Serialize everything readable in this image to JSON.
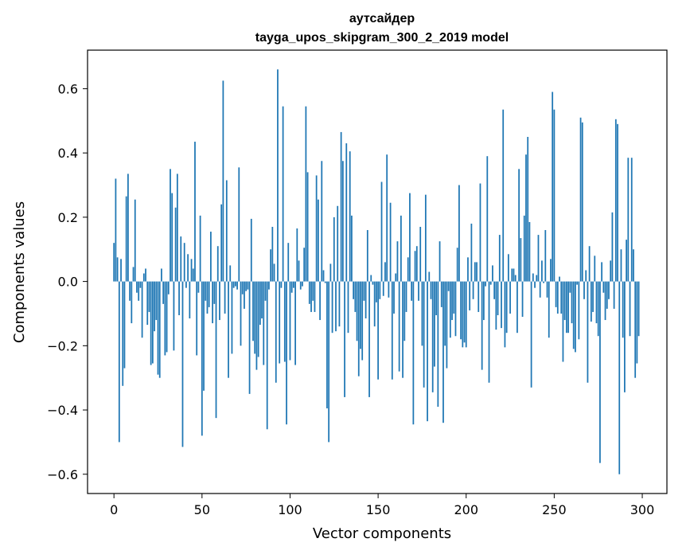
{
  "chart_data": {
    "type": "bar",
    "title": "аутсайдер",
    "subtitle": "tayga_upos_skipgram_300_2_2019 model",
    "xlabel": "Vector components",
    "ylabel": "Components values",
    "xlim": [
      -15,
      314
    ],
    "ylim": [
      -0.66,
      0.72
    ],
    "xticks": [
      0,
      50,
      100,
      150,
      200,
      250,
      300
    ],
    "yticks": [
      -0.6,
      -0.4,
      -0.2,
      0.0,
      0.2,
      0.4,
      0.6
    ],
    "ytick_labels": [
      "−0.6",
      "−0.4",
      "−0.2",
      "0.0",
      "0.2",
      "0.4",
      "0.6"
    ],
    "grid": false,
    "bar_color": "#1f77b4",
    "values": [
      0.12,
      0.32,
      0.075,
      -0.5,
      0.07,
      -0.325,
      -0.27,
      0.265,
      0.335,
      -0.06,
      -0.13,
      0.045,
      0.255,
      -0.035,
      -0.06,
      -0.02,
      -0.175,
      0.025,
      0.04,
      -0.135,
      -0.095,
      -0.26,
      -0.255,
      -0.155,
      -0.12,
      -0.29,
      -0.3,
      0.04,
      -0.07,
      -0.23,
      -0.22,
      -0.04,
      0.35,
      0.275,
      -0.215,
      0.23,
      0.335,
      -0.105,
      0.14,
      -0.515,
      0.12,
      -0.02,
      0.085,
      -0.115,
      0.07,
      0.04,
      0.435,
      -0.23,
      -0.035,
      0.205,
      -0.48,
      -0.34,
      -0.06,
      -0.1,
      -0.08,
      0.155,
      -0.13,
      -0.07,
      -0.425,
      0.11,
      -0.12,
      0.24,
      0.625,
      -0.1,
      0.315,
      -0.3,
      0.05,
      -0.225,
      -0.02,
      -0.015,
      -0.025,
      0.355,
      -0.2,
      -0.04,
      -0.085,
      -0.03,
      -0.025,
      -0.35,
      0.195,
      -0.185,
      -0.225,
      -0.275,
      -0.235,
      -0.135,
      -0.115,
      -0.26,
      -0.06,
      -0.46,
      -0.025,
      0.1,
      0.17,
      0.055,
      -0.315,
      0.66,
      -0.255,
      -0.02,
      0.545,
      -0.25,
      -0.445,
      0.12,
      -0.245,
      -0.035,
      -0.02,
      -0.26,
      0.165,
      0.065,
      -0.025,
      -0.015,
      0.105,
      0.545,
      0.34,
      -0.07,
      -0.095,
      -0.06,
      -0.095,
      0.33,
      0.255,
      -0.12,
      0.375,
      0.035,
      -0.005,
      -0.395,
      -0.5,
      0.055,
      -0.16,
      0.2,
      -0.155,
      0.235,
      -0.14,
      0.465,
      0.375,
      -0.36,
      0.43,
      -0.16,
      0.405,
      0.205,
      -0.055,
      -0.095,
      -0.185,
      -0.295,
      -0.21,
      -0.245,
      -0.06,
      -0.115,
      0.16,
      -0.36,
      0.02,
      -0.01,
      -0.14,
      -0.065,
      -0.305,
      -0.055,
      0.31,
      -0.045,
      0.06,
      0.395,
      -0.05,
      0.245,
      -0.305,
      -0.1,
      0.025,
      0.125,
      -0.28,
      0.205,
      -0.3,
      -0.185,
      -0.095,
      0.075,
      0.275,
      -0.06,
      -0.445,
      0.095,
      0.11,
      -0.06,
      0.17,
      -0.2,
      -0.33,
      0.27,
      -0.435,
      0.03,
      -0.055,
      -0.345,
      -0.265,
      -0.105,
      -0.39,
      0.125,
      -0.08,
      -0.44,
      -0.2,
      -0.27,
      -0.03,
      -0.175,
      -0.12,
      -0.1,
      -0.17,
      0.105,
      0.3,
      -0.18,
      -0.205,
      -0.19,
      -0.205,
      0.075,
      -0.09,
      0.18,
      -0.055,
      0.06,
      0.06,
      -0.095,
      0.305,
      -0.275,
      -0.12,
      -0.015,
      0.39,
      -0.315,
      -0.01,
      0.05,
      -0.055,
      -0.15,
      -0.105,
      0.145,
      -0.145,
      0.535,
      -0.205,
      -0.16,
      0.085,
      -0.1,
      0.04,
      0.04,
      0.02,
      -0.16,
      0.35,
      0.135,
      -0.11,
      0.205,
      0.395,
      0.45,
      0.185,
      -0.33,
      0.025,
      -0.02,
      0.02,
      0.145,
      -0.05,
      0.065,
      -0.005,
      0.16,
      -0.05,
      -0.175,
      0.07,
      0.59,
      0.535,
      -0.08,
      -0.1,
      0.015,
      -0.1,
      -0.25,
      -0.12,
      -0.16,
      -0.16,
      -0.035,
      -0.13,
      -0.21,
      -0.22,
      -0.01,
      -0.18,
      0.51,
      0.495,
      -0.055,
      0.035,
      -0.315,
      0.11,
      -0.125,
      -0.095,
      0.08,
      -0.13,
      -0.17,
      -0.565,
      0.06,
      -0.035,
      -0.12,
      -0.085,
      -0.055,
      0.065,
      0.215,
      -0.085,
      0.505,
      0.49,
      -0.6,
      0.1,
      -0.175,
      -0.345,
      0.13,
      0.385,
      -0.17,
      0.385,
      0.1,
      -0.3,
      -0.255,
      -0.17,
      0.0
    ]
  }
}
